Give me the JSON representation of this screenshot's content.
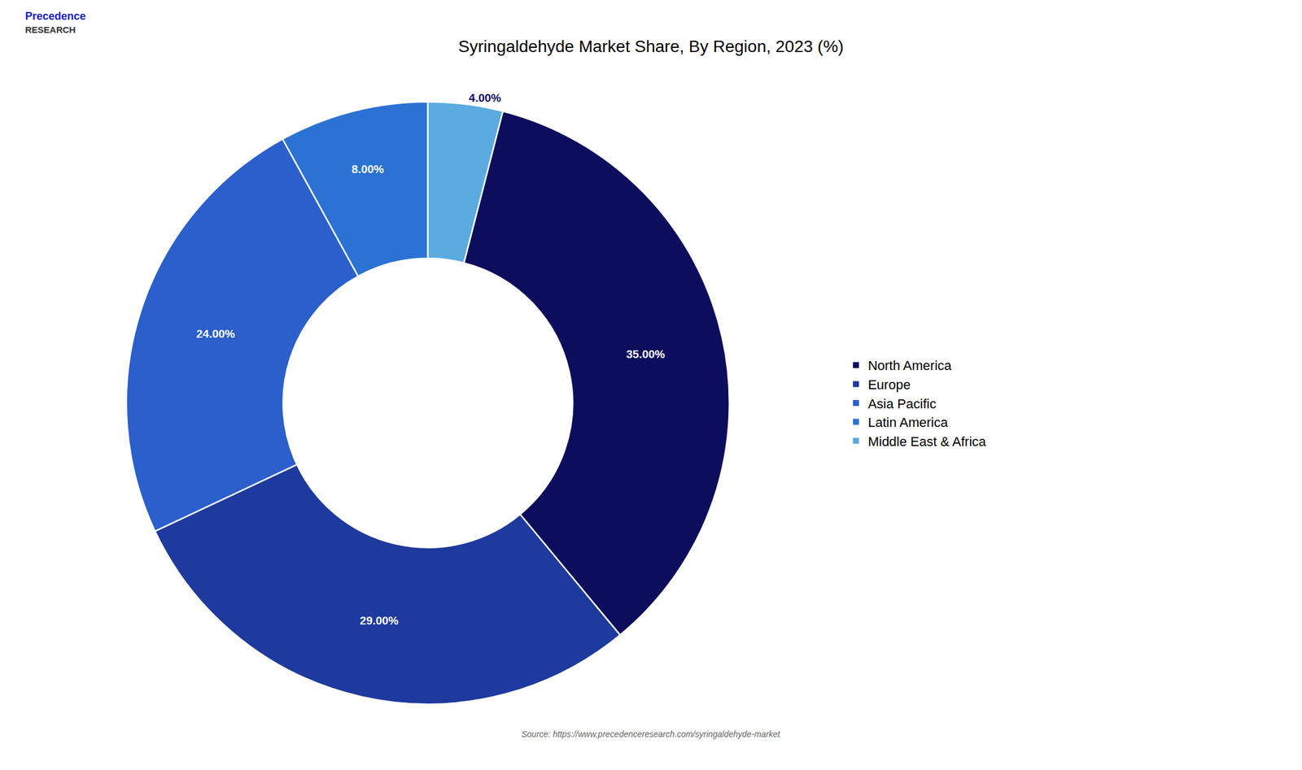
{
  "chart_data": {
    "type": "pie",
    "title": "Syringaldehyde Market Share, By Region, 2023 (%)",
    "categories": [
      "North America",
      "Europe",
      "Asia Pacific",
      "Latin America",
      "Middle East & Africa"
    ],
    "values": [
      35.0,
      29.0,
      24.0,
      8.0,
      4.0
    ],
    "colors": [
      "#0d0d5e",
      "#1e3a9e",
      "#2a5fcc",
      "#2b72d4",
      "#5baae0"
    ],
    "data_labels": true,
    "value_labels": [
      "35.00%",
      "29.00%",
      "24.00%",
      "8.00%",
      "4.00%"
    ],
    "legend": "right",
    "annotations": [
      "Source: https://www.precedenceresearch.com/syringaldehyde-market",
      "Precedence",
      "RESEARCH"
    ]
  }
}
